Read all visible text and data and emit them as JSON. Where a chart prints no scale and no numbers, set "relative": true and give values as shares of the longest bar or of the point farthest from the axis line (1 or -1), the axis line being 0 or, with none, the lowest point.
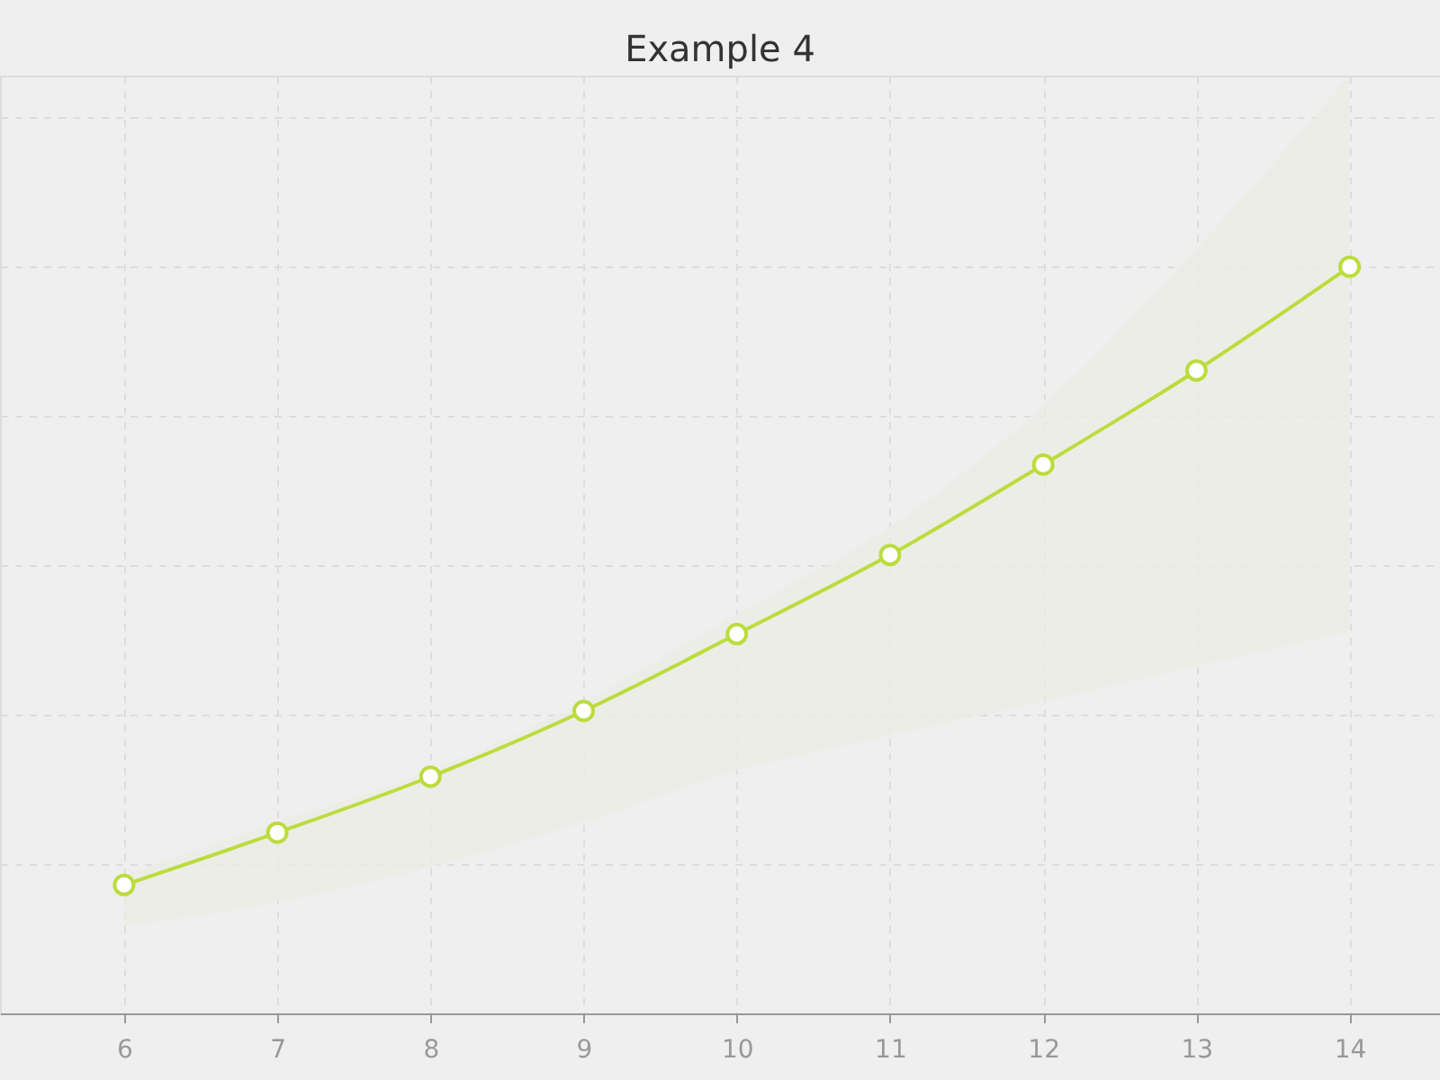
{
  "chart_data": {
    "type": "line",
    "title": "Example 4",
    "relative": true,
    "x": [
      6,
      7,
      8,
      9,
      10,
      11,
      12,
      13,
      14
    ],
    "series": [
      {
        "color": "#bcdc3c",
        "values": [
          0.172,
          0.242,
          0.317,
          0.405,
          0.508,
          0.614,
          0.735,
          0.861,
          1.0
        ],
        "lower": [
          0.117,
          0.149,
          0.196,
          0.256,
          0.325,
          0.372,
          0.418,
          0.465,
          0.511
        ],
        "upper": [
          0.186,
          0.256,
          0.325,
          0.418,
          0.535,
          0.652,
          0.814,
          1.024,
          1.256
        ]
      }
    ],
    "xlim": [
      5.19,
      14.59
    ],
    "xticks": [
      6,
      7,
      8,
      9,
      10,
      11,
      12,
      13,
      14
    ],
    "grid": true,
    "marker": "circle",
    "line_style": "solid"
  }
}
